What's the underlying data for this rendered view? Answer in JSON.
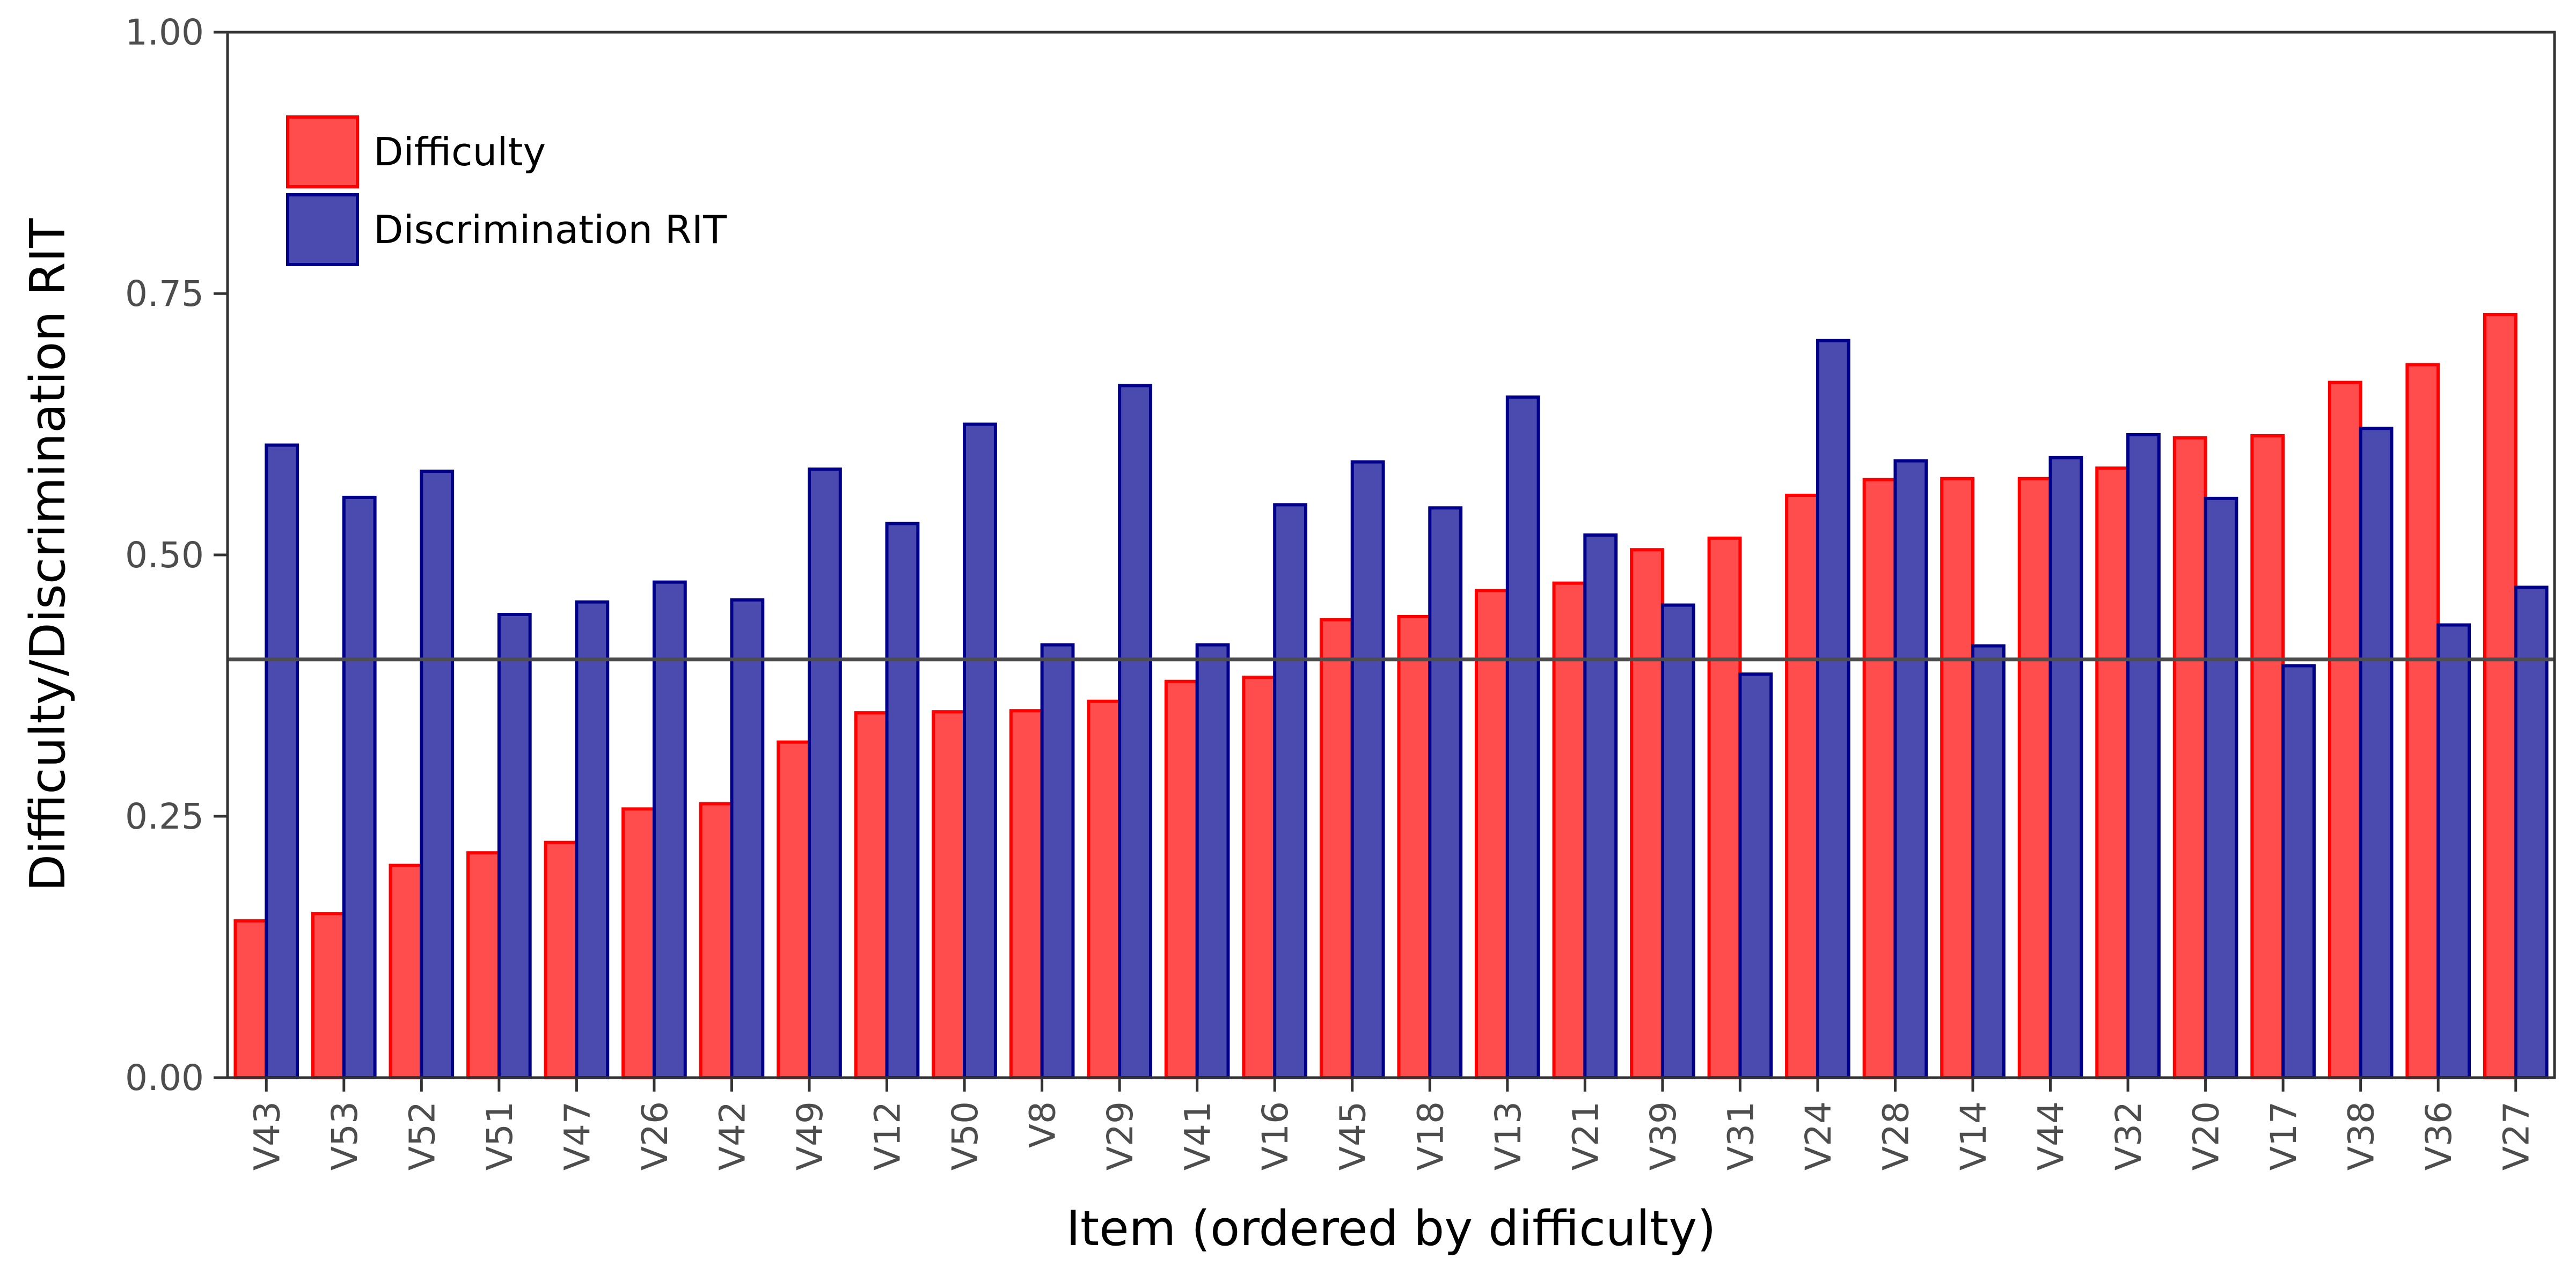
{
  "chart_data": {
    "type": "bar",
    "xlabel": "Item (ordered by difficulty)",
    "ylabel": "Difficulty/Discrimination RIT",
    "ylim": [
      0,
      1
    ],
    "yticks": [
      "0.00",
      "0.25",
      "0.50",
      "0.75",
      "1.00"
    ],
    "reference_line": 0.4,
    "grid": false,
    "legend_position": "top-left",
    "categories": [
      "V43",
      "V53",
      "V52",
      "V51",
      "V47",
      "V26",
      "V42",
      "V49",
      "V12",
      "V50",
      "V8",
      "V29",
      "V41",
      "V16",
      "V45",
      "V18",
      "V13",
      "V21",
      "V39",
      "V31",
      "V24",
      "V28",
      "V14",
      "V44",
      "V32",
      "V20",
      "V17",
      "V38",
      "V36",
      "V27"
    ],
    "series": [
      {
        "name": "Difficulty",
        "fill": "#ff4c4c",
        "stroke": "#ff0000",
        "values": [
          0.15,
          0.157,
          0.203,
          0.215,
          0.225,
          0.257,
          0.262,
          0.321,
          0.349,
          0.35,
          0.351,
          0.36,
          0.379,
          0.383,
          0.438,
          0.441,
          0.466,
          0.473,
          0.505,
          0.516,
          0.557,
          0.572,
          0.573,
          0.573,
          0.583,
          0.612,
          0.614,
          0.665,
          0.682,
          0.73
        ]
      },
      {
        "name": "Discrimination RIT",
        "fill": "#4b4baf",
        "stroke": "#00008b",
        "values": [
          0.605,
          0.555,
          0.58,
          0.443,
          0.455,
          0.474,
          0.457,
          0.582,
          0.53,
          0.625,
          0.414,
          0.662,
          0.414,
          0.548,
          0.589,
          0.545,
          0.651,
          0.519,
          0.452,
          0.386,
          0.705,
          0.59,
          0.413,
          0.593,
          0.615,
          0.554,
          0.394,
          0.621,
          0.433,
          0.469
        ]
      }
    ]
  }
}
